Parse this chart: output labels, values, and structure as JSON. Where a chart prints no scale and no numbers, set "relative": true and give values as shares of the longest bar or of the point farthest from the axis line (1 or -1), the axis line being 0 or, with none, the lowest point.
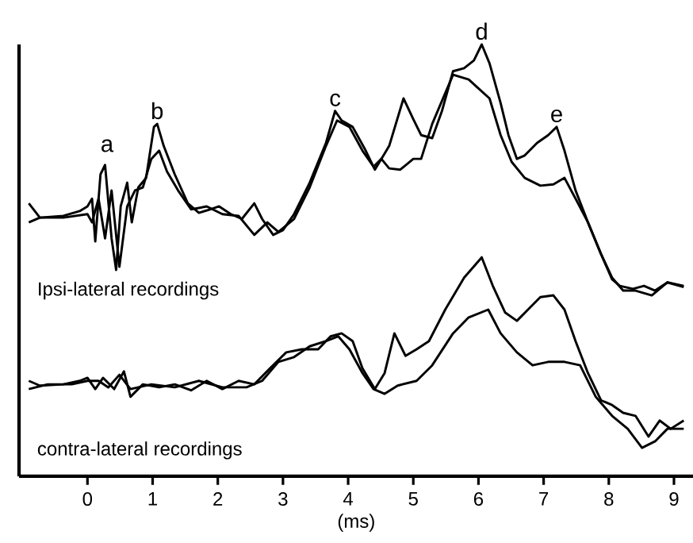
{
  "chart_data": {
    "type": "line",
    "relative": true,
    "xlabel": "(ms)",
    "xlim": [
      -1.05,
      9.3
    ],
    "xticks": [
      0,
      1,
      2,
      3,
      4,
      5,
      6,
      7,
      8,
      9
    ],
    "series": [
      {
        "color": "#000000",
        "x": [
          -0.9,
          -0.73,
          -0.37,
          -0.12,
          0,
          0.07,
          0.12,
          0.2,
          0.27,
          0.37,
          0.44,
          0.51,
          0.61,
          0.68,
          0.78,
          0.9,
          1.02,
          1.07,
          1.17,
          1.34,
          1.54,
          1.71,
          1.88,
          2.02,
          2.2,
          2.37,
          2.56,
          2.68,
          2.85,
          3.0,
          3.17,
          3.41,
          3.66,
          3.8,
          3.9,
          4.07,
          4.27,
          4.41,
          4.51,
          4.63,
          4.85,
          5.0,
          5.12,
          5.29,
          5.44,
          5.61,
          5.78,
          5.93,
          6.05,
          6.17,
          6.34,
          6.46,
          6.59,
          6.71,
          6.9,
          7.07,
          7.2,
          7.32,
          7.49,
          7.68,
          7.88,
          8.05,
          8.17,
          8.37,
          8.54,
          8.71,
          8.9,
          9.15
        ],
        "values": [
          0.632,
          0.599,
          0.603,
          0.614,
          0.625,
          0.643,
          0.544,
          0.699,
          0.721,
          0.551,
          0.478,
          0.625,
          0.68,
          0.588,
          0.669,
          0.691,
          0.809,
          0.816,
          0.765,
          0.699,
          0.632,
          0.61,
          0.618,
          0.625,
          0.607,
          0.596,
          0.632,
          0.596,
          0.559,
          0.57,
          0.607,
          0.68,
          0.772,
          0.846,
          0.824,
          0.809,
          0.754,
          0.71,
          0.735,
          0.765,
          0.875,
          0.827,
          0.79,
          0.783,
          0.846,
          0.938,
          0.945,
          0.963,
          1.0,
          0.956,
          0.864,
          0.79,
          0.735,
          0.743,
          0.772,
          0.79,
          0.809,
          0.754,
          0.662,
          0.588,
          0.515,
          0.456,
          0.441,
          0.434,
          0.441,
          0.43,
          0.449,
          0.441
        ]
      },
      {
        "color": "#000000",
        "x": [
          -0.9,
          -0.73,
          -0.37,
          0,
          0.07,
          0.17,
          0.27,
          0.37,
          0.49,
          0.61,
          0.73,
          0.85,
          0.98,
          1.1,
          1.22,
          1.39,
          1.59,
          1.83,
          2.07,
          2.32,
          2.56,
          2.76,
          2.93,
          3.17,
          3.41,
          3.66,
          3.83,
          4.02,
          4.22,
          4.39,
          4.51,
          4.63,
          4.8,
          5.0,
          5.12,
          5.29,
          5.61,
          5.85,
          5.98,
          6.17,
          6.34,
          6.51,
          6.71,
          6.95,
          7.15,
          7.32,
          7.49,
          7.68,
          7.88,
          8.05,
          8.22,
          8.41,
          8.66,
          8.9,
          9.15
        ],
        "values": [
          0.588,
          0.599,
          0.599,
          0.607,
          0.588,
          0.643,
          0.551,
          0.662,
          0.485,
          0.625,
          0.662,
          0.669,
          0.735,
          0.754,
          0.706,
          0.662,
          0.618,
          0.625,
          0.607,
          0.603,
          0.559,
          0.588,
          0.566,
          0.596,
          0.669,
          0.765,
          0.824,
          0.809,
          0.754,
          0.717,
          0.735,
          0.713,
          0.71,
          0.735,
          0.735,
          0.816,
          0.93,
          0.919,
          0.901,
          0.875,
          0.79,
          0.728,
          0.691,
          0.673,
          0.676,
          0.691,
          0.643,
          0.588,
          0.515,
          0.46,
          0.43,
          0.43,
          0.419,
          0.449,
          0.438
        ]
      },
      {
        "color": "#000000",
        "x": [
          -0.9,
          -0.73,
          -0.37,
          -0.12,
          0,
          0.12,
          0.24,
          0.41,
          0.56,
          0.66,
          0.85,
          1.1,
          1.34,
          1.59,
          1.83,
          2.07,
          2.32,
          2.56,
          2.8,
          3.05,
          3.29,
          3.54,
          3.73,
          3.9,
          4.07,
          4.22,
          4.41,
          4.56,
          4.71,
          4.88,
          5.05,
          5.24,
          5.49,
          5.78,
          6.05,
          6.22,
          6.41,
          6.59,
          6.76,
          6.95,
          7.15,
          7.32,
          7.49,
          7.68,
          7.88,
          8.05,
          8.22,
          8.41,
          8.61,
          8.78,
          8.95,
          9.15
        ],
        "values": [
          0.221,
          0.21,
          0.213,
          0.221,
          0.228,
          0.202,
          0.228,
          0.202,
          0.243,
          0.184,
          0.213,
          0.206,
          0.213,
          0.199,
          0.221,
          0.202,
          0.221,
          0.213,
          0.25,
          0.287,
          0.294,
          0.294,
          0.324,
          0.331,
          0.313,
          0.25,
          0.202,
          0.239,
          0.331,
          0.279,
          0.294,
          0.313,
          0.386,
          0.46,
          0.507,
          0.441,
          0.379,
          0.36,
          0.386,
          0.415,
          0.419,
          0.386,
          0.313,
          0.239,
          0.176,
          0.165,
          0.147,
          0.14,
          0.092,
          0.129,
          0.11,
          0.129
        ]
      },
      {
        "color": "#000000",
        "x": [
          -0.9,
          -0.61,
          -0.24,
          0,
          0.17,
          0.32,
          0.49,
          0.66,
          0.98,
          1.34,
          1.71,
          2.07,
          2.44,
          2.68,
          2.93,
          3.17,
          3.41,
          3.66,
          3.85,
          4.02,
          4.22,
          4.39,
          4.56,
          4.76,
          5.05,
          5.29,
          5.61,
          5.85,
          6.15,
          6.34,
          6.59,
          6.83,
          7.07,
          7.32,
          7.56,
          7.8,
          8.05,
          8.29,
          8.51,
          8.71,
          8.9,
          9.15
        ],
        "values": [
          0.202,
          0.213,
          0.213,
          0.221,
          0.221,
          0.206,
          0.235,
          0.202,
          0.213,
          0.206,
          0.221,
          0.206,
          0.206,
          0.221,
          0.265,
          0.276,
          0.301,
          0.313,
          0.324,
          0.294,
          0.239,
          0.202,
          0.191,
          0.21,
          0.221,
          0.257,
          0.331,
          0.368,
          0.386,
          0.331,
          0.287,
          0.257,
          0.265,
          0.265,
          0.257,
          0.184,
          0.14,
          0.11,
          0.066,
          0.081,
          0.11,
          0.11
        ]
      }
    ],
    "annotations": [
      {
        "text": "a",
        "x": 0.3,
        "y": 0.74
      },
      {
        "text": "b",
        "x": 1.07,
        "y": 0.816
      },
      {
        "text": "c",
        "x": 3.8,
        "y": 0.846
      },
      {
        "text": "d",
        "x": 6.05,
        "y": 1.0
      },
      {
        "text": "e",
        "x": 7.2,
        "y": 0.809
      },
      "Ipsi-lateral recordings",
      "contra-lateral recordings"
    ]
  }
}
